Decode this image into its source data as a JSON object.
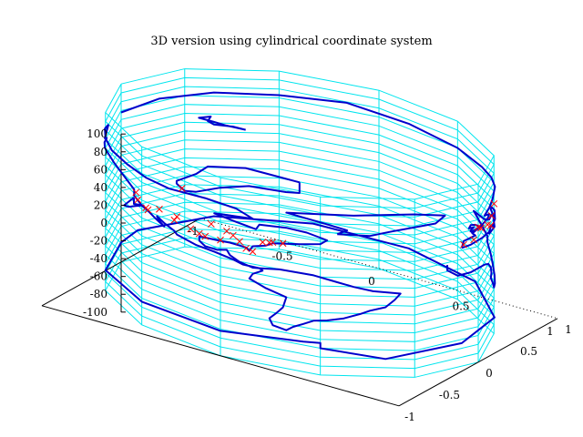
{
  "chart_data": {
    "type": "scatter",
    "title": "3D version using cylindrical coordinate system",
    "z_ticks": [
      "100",
      "80",
      "60",
      "40",
      "20",
      "0",
      "-20",
      "-40",
      "-60",
      "-80",
      "-100"
    ],
    "x_ticks": [
      "-1",
      "-0.5",
      "0",
      "0.5",
      "1"
    ],
    "y_ticks": [
      "-1",
      "-0.5",
      "0",
      "0.5",
      "1"
    ],
    "zlim": [
      -100,
      100
    ],
    "xlim": [
      -1,
      1
    ],
    "ylim": [
      -1,
      1
    ],
    "grid": "cylinder",
    "colors": {
      "grid": "#00e5ee",
      "coast": "#0000cc",
      "markers": "#ff0000",
      "axis": "#000000"
    },
    "series": [
      {
        "marker": "x",
        "points": [
          {
            "lon": -122,
            "lat": 38
          },
          {
            "lon": -118,
            "lat": 34
          },
          {
            "lon": -112,
            "lat": 40
          },
          {
            "lon": -105,
            "lat": 40
          },
          {
            "lon": -97,
            "lat": 30
          },
          {
            "lon": -95,
            "lat": 29
          },
          {
            "lon": -90,
            "lat": 30
          },
          {
            "lon": -88,
            "lat": 42
          },
          {
            "lon": -84,
            "lat": 34
          },
          {
            "lon": -80,
            "lat": 26
          },
          {
            "lon": -77,
            "lat": 39
          },
          {
            "lon": -74,
            "lat": 41
          },
          {
            "lon": -71,
            "lat": 42
          },
          {
            "lon": -123,
            "lat": 45
          },
          {
            "lon": -117,
            "lat": 33
          },
          {
            "lon": -106,
            "lat": 35
          },
          {
            "lon": -100,
            "lat": 32
          },
          {
            "lon": -93,
            "lat": 45
          },
          {
            "lon": -86,
            "lat": 39
          },
          {
            "lon": -82,
            "lat": 28
          },
          {
            "lon": -75,
            "lat": 40
          },
          {
            "lon": -0.1,
            "lat": 51.5
          },
          {
            "lon": 2,
            "lat": 49
          },
          {
            "lon": 13,
            "lat": 52
          },
          {
            "lon": 12,
            "lat": 42
          },
          {
            "lon": -3,
            "lat": 40
          },
          {
            "lon": 8,
            "lat": 47
          },
          {
            "lon": 18,
            "lat": 60
          },
          {
            "lon": -9,
            "lat": 39
          },
          {
            "lon": 151,
            "lat": -34
          }
        ]
      }
    ]
  }
}
